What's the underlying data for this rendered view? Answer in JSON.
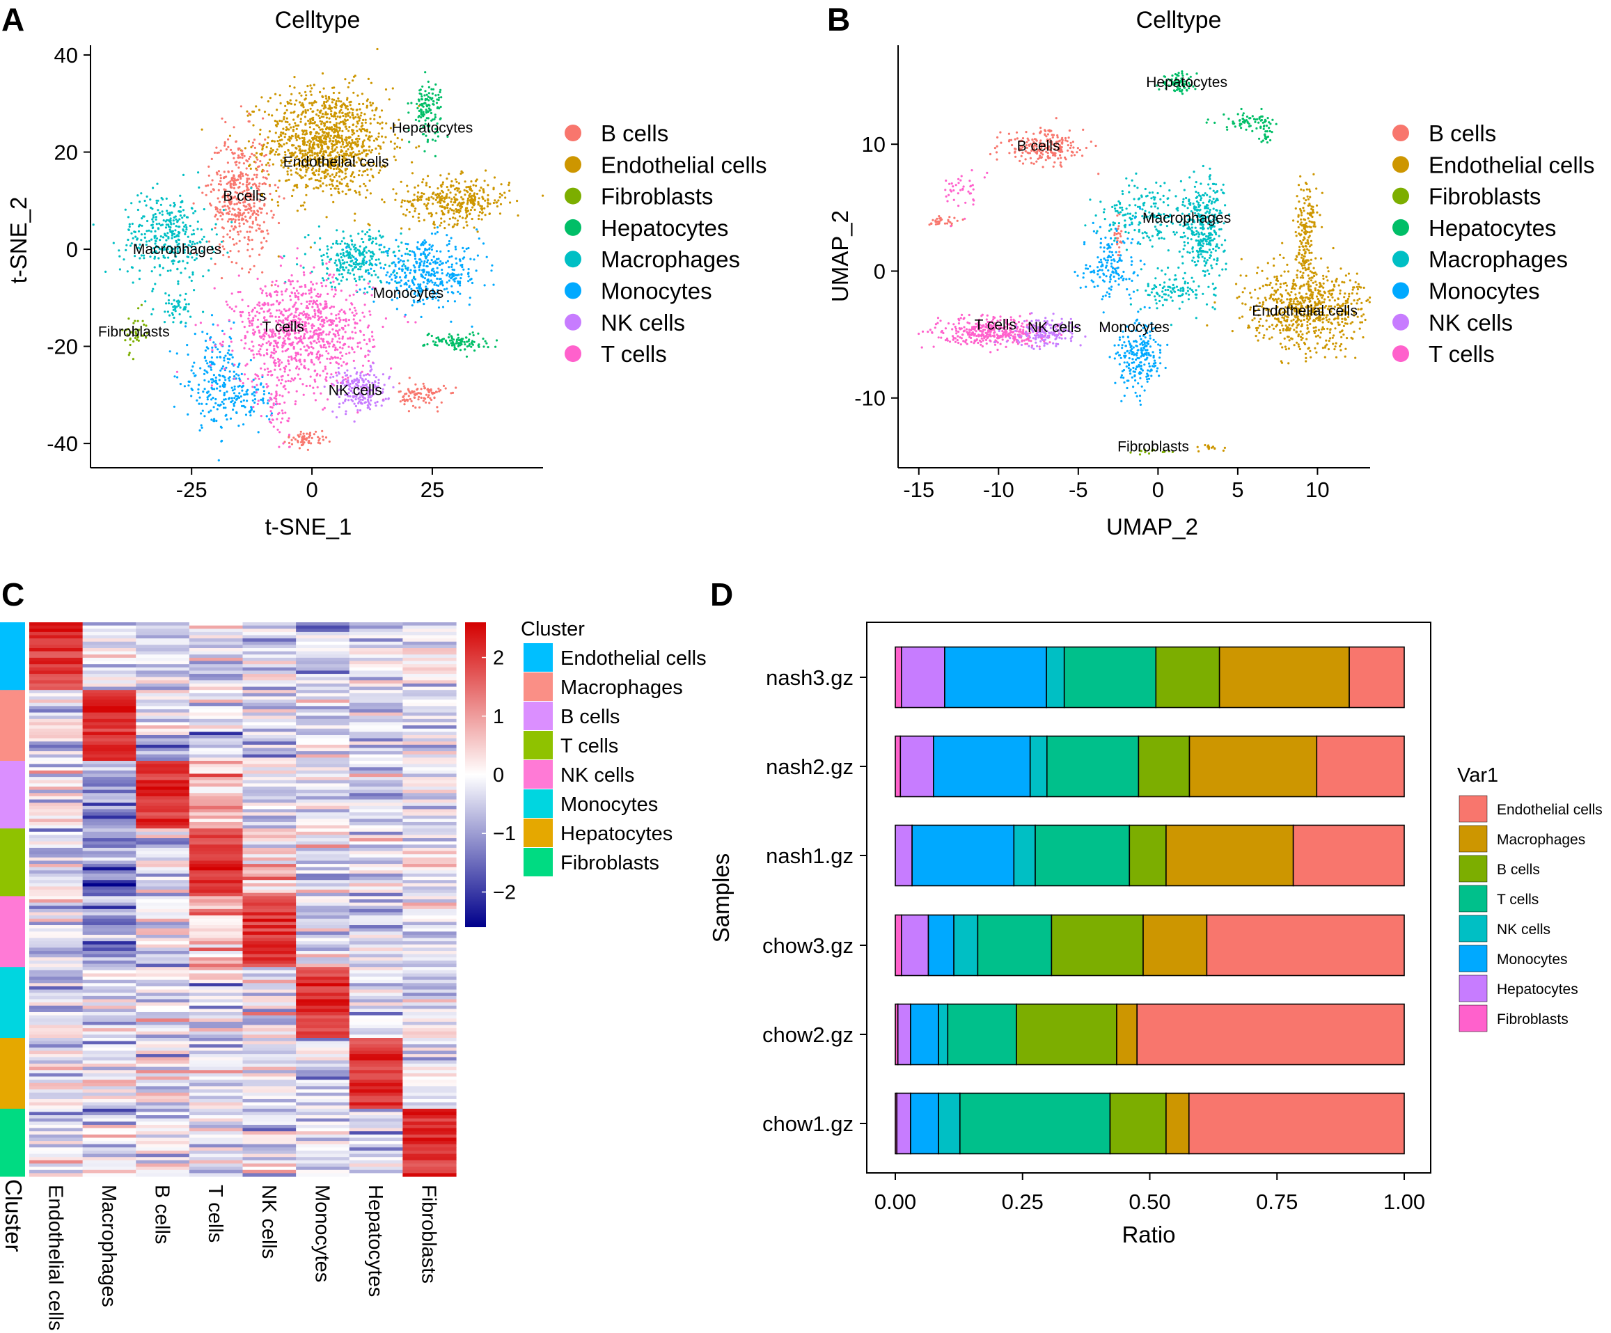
{
  "colors": {
    "b_cells": "#F8766D",
    "endothelial": "#CD9600",
    "fibroblasts": "#7CAE00",
    "hepatocytes": "#00BE67",
    "macrophages": "#00BFC4",
    "monocytes": "#00A9FF",
    "nk_cells": "#C77CFF",
    "t_cells": "#FF61CC"
  },
  "chart_data": [
    {
      "panel": "A",
      "type": "scatter",
      "title": "Celltype",
      "xlabel": "t-SNE_1",
      "ylabel": "t-SNE_2",
      "xlim": [
        -46,
        48
      ],
      "ylim": [
        -45,
        42
      ],
      "xticks": [
        -25,
        0,
        25
      ],
      "yticks": [
        -40,
        -20,
        0,
        20,
        40
      ],
      "legend": {
        "position": "right",
        "entries": [
          "B cells",
          "Endothelial cells",
          "Fibroblasts",
          "Hepatocytes",
          "Macrophages",
          "Monocytes",
          "NK cells",
          "T cells"
        ],
        "colors": [
          "#F8766D",
          "#CD9600",
          "#7CAE00",
          "#00BE67",
          "#00BFC4",
          "#00A9FF",
          "#C77CFF",
          "#FF61CC"
        ]
      },
      "cluster_labels": [
        {
          "text": "Hepatocytes",
          "x": 25,
          "y": 24
        },
        {
          "text": "Endothelial cells",
          "x": 5,
          "y": 17
        },
        {
          "text": "B cells",
          "x": -14,
          "y": 10
        },
        {
          "text": "Macrophages",
          "x": -28,
          "y": -1
        },
        {
          "text": "Monocytes",
          "x": 20,
          "y": -10
        },
        {
          "text": "Fibroblasts",
          "x": -37,
          "y": -18
        },
        {
          "text": "T cells",
          "x": -6,
          "y": -17
        },
        {
          "text": "NK cells",
          "x": 9,
          "y": -30
        }
      ],
      "clusters": [
        {
          "cell": "Endothelial cells",
          "color": "#CD9600",
          "cx": 3,
          "cy": 22,
          "sx": 8,
          "sy": 7,
          "n": 1100
        },
        {
          "cell": "Endothelial cells",
          "color": "#CD9600",
          "cx": 30,
          "cy": 10,
          "sx": 7,
          "sy": 3,
          "n": 350
        },
        {
          "cell": "B cells",
          "color": "#F8766D",
          "cx": -15,
          "cy": 11,
          "sx": 4,
          "sy": 8,
          "n": 420
        },
        {
          "cell": "B cells",
          "color": "#F8766D",
          "cx": 23,
          "cy": -30,
          "sx": 3,
          "sy": 1.6,
          "n": 90
        },
        {
          "cell": "B cells",
          "color": "#F8766D",
          "cx": -1,
          "cy": -39,
          "sx": 2.5,
          "sy": 1,
          "n": 60
        },
        {
          "cell": "Macrophages",
          "color": "#00BFC4",
          "cx": -30,
          "cy": 3,
          "sx": 6,
          "sy": 5.5,
          "n": 330
        },
        {
          "cell": "Macrophages",
          "color": "#00BFC4",
          "cx": 9,
          "cy": -2,
          "sx": 6,
          "sy": 3.5,
          "n": 260
        },
        {
          "cell": "Macrophages",
          "color": "#00BFC4",
          "cx": -28,
          "cy": -12,
          "sx": 3,
          "sy": 2,
          "n": 50
        },
        {
          "cell": "Monocytes",
          "color": "#00A9FF",
          "cx": 24,
          "cy": -5,
          "sx": 7,
          "sy": 4,
          "n": 360
        },
        {
          "cell": "Monocytes",
          "color": "#00A9FF",
          "cx": -20,
          "cy": -27,
          "sx": 4,
          "sy": 6,
          "n": 200
        },
        {
          "cell": "Monocytes",
          "color": "#00A9FF",
          "cx": -13,
          "cy": -31,
          "sx": 3,
          "sy": 3,
          "n": 80
        },
        {
          "cell": "Hepatocytes",
          "color": "#00BE67",
          "cx": 24,
          "cy": 29,
          "sx": 2,
          "sy": 3.5,
          "n": 120
        },
        {
          "cell": "Hepatocytes",
          "color": "#00BE67",
          "cx": 30,
          "cy": -19,
          "sx": 4,
          "sy": 1.2,
          "n": 100
        },
        {
          "cell": "T cells",
          "color": "#FF61CC",
          "cx": -2,
          "cy": -17,
          "sx": 9,
          "sy": 7,
          "n": 900
        },
        {
          "cell": "T cells",
          "color": "#FF61CC",
          "cx": -7,
          "cy": -32,
          "sx": 1.5,
          "sy": 4,
          "n": 60
        },
        {
          "cell": "NK cells",
          "color": "#C77CFF",
          "cx": 10,
          "cy": -29,
          "sx": 3.5,
          "sy": 3,
          "n": 200
        },
        {
          "cell": "Fibroblasts",
          "color": "#7CAE00",
          "cx": -37,
          "cy": -17,
          "sx": 1.5,
          "sy": 2.5,
          "n": 40
        }
      ]
    },
    {
      "panel": "B",
      "type": "scatter",
      "title": "Celltype",
      "xlabel": "UMAP_2",
      "ylabel": "UMAP_2",
      "xlim": [
        -16.3,
        13.3
      ],
      "ylim": [
        -15.5,
        17.8
      ],
      "xticks": [
        -15,
        -10,
        -5,
        0,
        5,
        10
      ],
      "yticks": [
        -10,
        0,
        10
      ],
      "legend": {
        "position": "right",
        "entries": [
          "B cells",
          "Endothelial cells",
          "Fibroblasts",
          "Hepatocytes",
          "Macrophages",
          "Monocytes",
          "NK cells",
          "T cells"
        ],
        "colors": [
          "#F8766D",
          "#CD9600",
          "#7CAE00",
          "#00BE67",
          "#00BFC4",
          "#00A9FF",
          "#C77CFF",
          "#FF61CC"
        ]
      },
      "cluster_labels": [
        {
          "text": "Hepatocytes",
          "x": 1.8,
          "y": 14.5
        },
        {
          "text": "B cells",
          "x": -7.5,
          "y": 9.5
        },
        {
          "text": "Macrophages",
          "x": 1.8,
          "y": 3.8
        },
        {
          "text": "Endothelial cells",
          "x": 9.2,
          "y": -3.5
        },
        {
          "text": "T cells",
          "x": -10.2,
          "y": -4.6
        },
        {
          "text": "NK cells",
          "x": -6.5,
          "y": -4.8
        },
        {
          "text": "Monocytes",
          "x": -1.5,
          "y": -4.8
        },
        {
          "text": "Fibroblasts",
          "x": -0.3,
          "y": -14.2
        }
      ],
      "clusters": [
        {
          "cell": "Hepatocytes",
          "color": "#00BE67",
          "cx": 1.2,
          "cy": 14.8,
          "sx": 0.7,
          "sy": 0.5,
          "n": 80
        },
        {
          "cell": "Hepatocytes",
          "color": "#00BE67",
          "cx": 5.5,
          "cy": 11.8,
          "sx": 1.3,
          "sy": 0.4,
          "n": 60
        },
        {
          "cell": "Hepatocytes",
          "color": "#00BE67",
          "cx": 6.8,
          "cy": 10.8,
          "sx": 0.3,
          "sy": 0.8,
          "n": 25
        },
        {
          "cell": "B cells",
          "color": "#F8766D",
          "cx": -7.2,
          "cy": 9.8,
          "sx": 1.6,
          "sy": 0.8,
          "n": 220
        },
        {
          "cell": "B cells",
          "color": "#F8766D",
          "cx": -13.5,
          "cy": 3.9,
          "sx": 0.6,
          "sy": 0.3,
          "n": 30
        },
        {
          "cell": "B cells",
          "color": "#F8766D",
          "cx": -2.5,
          "cy": 2.5,
          "sx": 0.2,
          "sy": 1.0,
          "n": 25
        },
        {
          "cell": "T cells",
          "color": "#FF61CC",
          "cx": -12.2,
          "cy": 6.3,
          "sx": 0.7,
          "sy": 1.2,
          "n": 40
        },
        {
          "cell": "T cells",
          "color": "#FF61CC",
          "cx": -10.3,
          "cy": -4.8,
          "sx": 2.2,
          "sy": 0.7,
          "n": 380
        },
        {
          "cell": "NK cells",
          "color": "#C77CFF",
          "cx": -7.0,
          "cy": -4.8,
          "sx": 1.2,
          "sy": 0.7,
          "n": 160
        },
        {
          "cell": "Macrophages",
          "color": "#00BFC4",
          "cx": 2.8,
          "cy": 3.5,
          "sx": 0.8,
          "sy": 2.5,
          "n": 320
        },
        {
          "cell": "Macrophages",
          "color": "#00BFC4",
          "cx": -0.8,
          "cy": 4.5,
          "sx": 1.8,
          "sy": 1.6,
          "n": 180
        },
        {
          "cell": "Macrophages",
          "color": "#00BFC4",
          "cx": 0.8,
          "cy": -1.5,
          "sx": 1.2,
          "sy": 1.0,
          "n": 100
        },
        {
          "cell": "Monocytes",
          "color": "#00A9FF",
          "cx": -1.2,
          "cy": -6.5,
          "sx": 0.9,
          "sy": 1.8,
          "n": 220
        },
        {
          "cell": "Monocytes",
          "color": "#00A9FF",
          "cx": -3.0,
          "cy": 0.5,
          "sx": 1.1,
          "sy": 2.0,
          "n": 150
        },
        {
          "cell": "Endothelial cells",
          "color": "#CD9600",
          "cx": 9.3,
          "cy": -3.0,
          "sx": 2.3,
          "sy": 2.0,
          "n": 650
        },
        {
          "cell": "Endothelial cells",
          "color": "#CD9600",
          "cx": 9.3,
          "cy": 3.0,
          "sx": 0.45,
          "sy": 2.5,
          "n": 180
        },
        {
          "cell": "Endothelial cells",
          "color": "#CD9600",
          "cx": 3.2,
          "cy": -13.9,
          "sx": 0.6,
          "sy": 0.2,
          "n": 15
        },
        {
          "cell": "Fibroblasts",
          "color": "#7CAE00",
          "cx": -0.5,
          "cy": -14.2,
          "sx": 1.0,
          "sy": 0.15,
          "n": 15
        }
      ]
    },
    {
      "panel": "C",
      "type": "heatmap",
      "columns": [
        "Endothelial cells",
        "Macrophages",
        "B cells",
        "T cells",
        "NK cells",
        "Monocytes",
        "Hepatocytes",
        "Fibroblasts"
      ],
      "row_annotation_label": "Cluster",
      "legend_title": "Cluster",
      "clusters": [
        "Endothelial cells",
        "Macrophages",
        "B cells",
        "T cells",
        "NK cells",
        "Monocytes",
        "Hepatocytes",
        "Fibroblasts"
      ],
      "cluster_colors": [
        "#00BFFF",
        "#FA8F86",
        "#DB8FFF",
        "#8FC200",
        "#FF7AD6",
        "#00D6E0",
        "#E5A800",
        "#00DB82"
      ],
      "cluster_row_counts": [
        21,
        22,
        21,
        21,
        22,
        22,
        22,
        21
      ],
      "colorbar": {
        "min": -2.6,
        "max": 2.6,
        "ticks": [
          2,
          1,
          0,
          -1,
          -2
        ],
        "colors": [
          "#00008B",
          "#FFFFFF",
          "#D40000"
        ]
      }
    },
    {
      "panel": "D",
      "type": "bar",
      "orientation": "horizontal",
      "stacked": true,
      "xlabel": "Ratio",
      "ylabel": "Samples",
      "xlim": [
        0,
        1
      ],
      "xticks": [
        "0.00",
        "0.25",
        "0.50",
        "0.75",
        "1.00"
      ],
      "categories": [
        "nash3.gz",
        "nash2.gz",
        "nash1.gz",
        "chow3.gz",
        "chow2.gz",
        "chow1.gz"
      ],
      "legend": {
        "title": "Var1",
        "position": "right"
      },
      "series": [
        {
          "name": "Fibroblasts",
          "color": "#FF61CC",
          "values": [
            0.012,
            0.01,
            0.0,
            0.012,
            0.005,
            0.003
          ]
        },
        {
          "name": "Hepatocytes",
          "color": "#C77CFF",
          "values": [
            0.085,
            0.065,
            0.033,
            0.053,
            0.025,
            0.027
          ]
        },
        {
          "name": "Monocytes",
          "color": "#00A9FF",
          "values": [
            0.2,
            0.19,
            0.2,
            0.05,
            0.055,
            0.055
          ]
        },
        {
          "name": "NK cells",
          "color": "#00BFC4",
          "values": [
            0.035,
            0.033,
            0.042,
            0.047,
            0.018,
            0.042
          ]
        },
        {
          "name": "T cells",
          "color": "#00C08B",
          "values": [
            0.18,
            0.18,
            0.185,
            0.145,
            0.135,
            0.295
          ]
        },
        {
          "name": "B cells",
          "color": "#7CAE00",
          "values": [
            0.125,
            0.1,
            0.072,
            0.18,
            0.197,
            0.11
          ]
        },
        {
          "name": "Macrophages",
          "color": "#CD9600",
          "values": [
            0.255,
            0.25,
            0.25,
            0.125,
            0.04,
            0.045
          ]
        },
        {
          "name": "Endothelial cells",
          "color": "#F8766D",
          "values": [
            0.108,
            0.172,
            0.218,
            0.388,
            0.525,
            0.423
          ]
        }
      ]
    }
  ],
  "panel_letters": [
    "A",
    "B",
    "C",
    "D"
  ]
}
